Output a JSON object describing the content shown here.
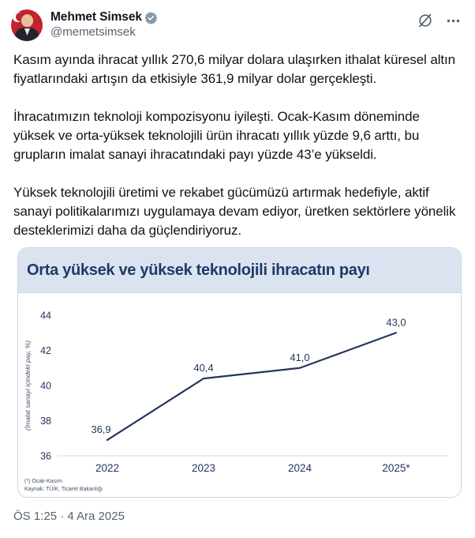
{
  "header": {
    "display_name": "Mehmet Simsek",
    "handle": "@memetsimsek",
    "verified_badge": "gray-verified-checkmark",
    "actions": [
      "grok",
      "more"
    ]
  },
  "tweet": {
    "paragraphs": [
      "Kasım ayında ihracat yıllık 270,6 milyar dolara ulaşırken ithalat küresel altın fiyatlarındaki artışın da etkisiyle 361,9 milyar dolar gerçekleşti.",
      "İhracatımızın teknoloji kompozisyonu iyileşti. Ocak-Kasım döneminde yüksek ve orta-yüksek teknolojili ürün ihracatı yıllık yüzde 9,6 arttı, bu grupların imalat sanayi ihracatındaki payı yüzde 43’e yükseldi.",
      "Yüksek teknolojili üretimi ve rekabet gücümüzü artırmak hedefiyle, aktif sanayi politikalarımızı uygulamaya devam ediyor, üretken sektörlere yönelik desteklerimizi daha da güçlendiriyoruz."
    ]
  },
  "chart_card": {
    "title": "Orta yüksek ve yüksek teknolojili ihracatın payı",
    "footnote_lines": [
      "(*) Ocak-Kasım",
      "Kaynak: TÜİK, Ticaret Bakanlığı"
    ]
  },
  "chart_data": {
    "type": "line",
    "title": "Orta yüksek ve yüksek teknolojili ihracatın payı",
    "categories": [
      "2022",
      "2023",
      "2024",
      "2025*"
    ],
    "values": [
      36.9,
      40.4,
      41.0,
      43.0
    ],
    "value_labels": [
      "36,9",
      "40,4",
      "41,0",
      "43,0"
    ],
    "ylabel": "(İmalat sanayi içindeki pay, %)",
    "xlabel": "",
    "yticks": [
      36,
      38,
      40,
      42,
      44
    ],
    "ylim": [
      36,
      44.8
    ],
    "grid": false,
    "legend": false,
    "footnote": "(*) Ocak-Kasım — Kaynak: TÜİK, Ticaret Bakanlığı"
  },
  "footer": {
    "timestamp": "ÖS 1:25 · 4 Ara 2025"
  },
  "colors": {
    "text_primary": "#0f1419",
    "text_secondary": "#536471",
    "navy_title": "#1e3a68",
    "chart_text": "#24365e",
    "line": "#24365e",
    "title_bar_bg": "#dbe3f1",
    "card_border": "#d0d5d9",
    "axis_line": "#d9d9d9",
    "verified_badge": "#829aab"
  }
}
